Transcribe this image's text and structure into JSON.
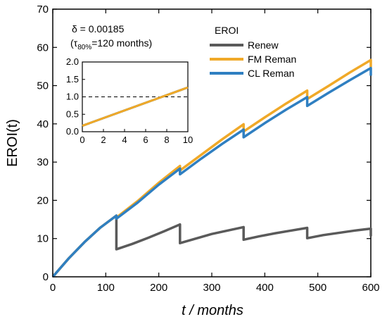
{
  "chart_data": [
    {
      "type": "line",
      "xlabel": "t / months",
      "ylabel": "EROI(t)",
      "xlim": [
        0,
        600
      ],
      "ylim": [
        0,
        70
      ],
      "xticks": [
        "0",
        "100",
        "200",
        "300",
        "400",
        "500",
        "600"
      ],
      "yticks": [
        "0",
        "10",
        "20",
        "30",
        "40",
        "50",
        "60",
        "70"
      ],
      "legend_title": "EROI",
      "legend_position": "top-right",
      "series": [
        {
          "name": "Renew",
          "color": "#5a5a5a",
          "points": [
            [
              0,
              0
            ],
            [
              30,
              4.8
            ],
            [
              60,
              9.1
            ],
            [
              90,
              12.9
            ],
            [
              120,
              16.0
            ],
            [
              120,
              7.2
            ],
            [
              150,
              8.6
            ],
            [
              180,
              10.2
            ],
            [
              210,
              11.9
            ],
            [
              240,
              13.7
            ],
            [
              240,
              8.8
            ],
            [
              270,
              10.0
            ],
            [
              300,
              11.2
            ],
            [
              330,
              12.1
            ],
            [
              360,
              13.0
            ],
            [
              360,
              9.7
            ],
            [
              390,
              10.6
            ],
            [
              420,
              11.4
            ],
            [
              450,
              12.1
            ],
            [
              480,
              12.8
            ],
            [
              480,
              10.1
            ],
            [
              510,
              10.9
            ],
            [
              540,
              11.5
            ],
            [
              570,
              12.1
            ],
            [
              600,
              12.6
            ],
            [
              600,
              10.6
            ]
          ]
        },
        {
          "name": "FM Reman",
          "color": "#f0a928",
          "points": [
            [
              0,
              0
            ],
            [
              30,
              4.8
            ],
            [
              60,
              9.1
            ],
            [
              90,
              12.9
            ],
            [
              120,
              16.0
            ],
            [
              120,
              15.5
            ],
            [
              160,
              19.8
            ],
            [
              200,
              24.6
            ],
            [
              240,
              29.0
            ],
            [
              240,
              27.8
            ],
            [
              280,
              31.9
            ],
            [
              320,
              36.0
            ],
            [
              360,
              39.9
            ],
            [
              360,
              38.0
            ],
            [
              400,
              41.7
            ],
            [
              440,
              45.3
            ],
            [
              480,
              48.7
            ],
            [
              480,
              46.5
            ],
            [
              520,
              49.9
            ],
            [
              560,
              53.4
            ],
            [
              600,
              56.7
            ],
            [
              600,
              54.8
            ]
          ]
        },
        {
          "name": "CL Reman",
          "color": "#2f7fc1",
          "points": [
            [
              0,
              0
            ],
            [
              30,
              4.8
            ],
            [
              60,
              9.1
            ],
            [
              90,
              12.9
            ],
            [
              120,
              16.0
            ],
            [
              120,
              15.2
            ],
            [
              160,
              19.4
            ],
            [
              200,
              24.1
            ],
            [
              240,
              28.3
            ],
            [
              240,
              26.8
            ],
            [
              280,
              30.9
            ],
            [
              320,
              34.8
            ],
            [
              360,
              38.5
            ],
            [
              360,
              36.5
            ],
            [
              400,
              40.2
            ],
            [
              440,
              43.7
            ],
            [
              480,
              47.0
            ],
            [
              480,
              44.7
            ],
            [
              520,
              48.1
            ],
            [
              560,
              51.4
            ],
            [
              600,
              54.6
            ],
            [
              600,
              52.6
            ]
          ]
        }
      ],
      "annotation": {
        "line1": "δ = 0.00185",
        "line2_prefix": "(τ",
        "line2_sub": "80%",
        "line2_suffix": "=120 months)"
      }
    },
    {
      "type": "line",
      "role": "inset",
      "xlim": [
        0,
        10
      ],
      "ylim": [
        0,
        2.0
      ],
      "xticks": [
        "0",
        "2",
        "4",
        "6",
        "8",
        "10"
      ],
      "yticks": [
        "0.0",
        "0.5",
        "1.0",
        "1.5",
        "2.0"
      ],
      "reference_line": {
        "y": 1.0,
        "style": "dashed"
      },
      "series": [
        {
          "color": "#5a5a5a",
          "points": [
            [
              0,
              0.17
            ],
            [
              10,
              1.27
            ]
          ]
        },
        {
          "color": "#2f7fc1",
          "points": [
            [
              0,
              0.17
            ],
            [
              10,
              1.27
            ]
          ]
        },
        {
          "color": "#f0a928",
          "points": [
            [
              0,
              0.17
            ],
            [
              10,
              1.27
            ]
          ]
        }
      ]
    }
  ]
}
